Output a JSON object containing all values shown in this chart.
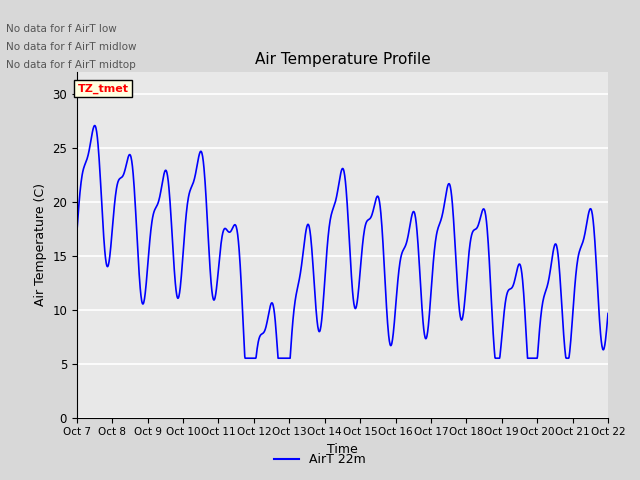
{
  "title": "Air Temperature Profile",
  "xlabel": "Time",
  "ylabel": "Air Temperature (C)",
  "ylim": [
    0,
    32
  ],
  "yticks": [
    0,
    5,
    10,
    15,
    20,
    25,
    30
  ],
  "line_color": "blue",
  "line_label": "AirT 22m",
  "bg_color": "#d8d8d8",
  "plot_bg_color": "#e8e8e8",
  "no_data_texts": [
    "No data for f AirT low",
    "No data for f AirT midlow",
    "No data for f AirT midtop"
  ],
  "tz_label": "TZ_tmet",
  "x_tick_labels": [
    "Oct 7",
    "Oct 8",
    "Oct 9",
    "Oct 10",
    "Oct 11",
    "Oct 12",
    "Oct 13",
    "Oct 14",
    "Oct 15",
    "Oct 16",
    "Oct 17",
    "Oct 18",
    "Oct 19",
    "Oct 20",
    "Oct 21",
    "Oct 22"
  ],
  "figsize": [
    6.4,
    4.8
  ],
  "dpi": 100
}
